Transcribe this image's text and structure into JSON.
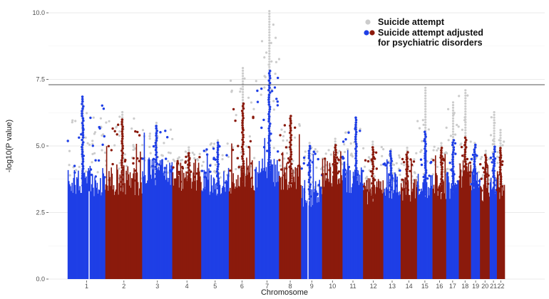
{
  "chart_data": {
    "type": "scatter",
    "subtype": "manhattan",
    "title": "",
    "xlabel": "Chromosome",
    "ylabel": "-log10(P value)",
    "ylim": [
      0,
      10.2
    ],
    "yticks": [
      0.0,
      2.5,
      5.0,
      7.5,
      10.0
    ],
    "ytick_labels": [
      "0.0",
      "2.5",
      "5.0",
      "7.5",
      "10.0"
    ],
    "significance_line": 7.3,
    "grid": "horizontal",
    "legend_position": "top-right",
    "colors": {
      "background_series": "#cccccc",
      "blue": "#1f3fe6",
      "red": "#8b1a0c",
      "threshold": "#555555",
      "grid": "#e3e3e3"
    },
    "legend": [
      {
        "label": "Suicide attempt",
        "marker": "grey"
      },
      {
        "label_line1": "Suicide attempt adjusted",
        "label_line2": "for psychiatric disorders",
        "marker": "blue-red"
      }
    ],
    "series": [
      {
        "name": "Suicide attempt",
        "color": "#cccccc"
      },
      {
        "name": "Suicide attempt adjusted for psychiatric disorders",
        "color_alternating": [
          "#1f3fe6",
          "#8b1a0c"
        ]
      }
    ],
    "chromosomes": [
      {
        "label": "1",
        "size": 248,
        "max_unadjusted": 6.6,
        "max_adjusted": 6.9
      },
      {
        "label": "2",
        "size": 242,
        "max_unadjusted": 6.3,
        "max_adjusted": 6.0
      },
      {
        "label": "3",
        "size": 198,
        "max_unadjusted": 5.9,
        "max_adjusted": 5.8
      },
      {
        "label": "4",
        "size": 190,
        "max_unadjusted": 5.0,
        "max_adjusted": 4.8
      },
      {
        "label": "5",
        "size": 181,
        "max_unadjusted": 5.3,
        "max_adjusted": 5.2
      },
      {
        "label": "6",
        "size": 171,
        "max_unadjusted": 8.0,
        "max_adjusted": 6.6
      },
      {
        "label": "7",
        "size": 159,
        "max_unadjusted": 10.1,
        "max_adjusted": 7.9
      },
      {
        "label": "8",
        "size": 145,
        "max_unadjusted": 6.1,
        "max_adjusted": 6.2
      },
      {
        "label": "9",
        "size": 138,
        "max_unadjusted": 5.2,
        "max_adjusted": 5.0
      },
      {
        "label": "10",
        "size": 134,
        "max_unadjusted": 5.3,
        "max_adjusted": 5.1
      },
      {
        "label": "11",
        "size": 135,
        "max_unadjusted": 5.9,
        "max_adjusted": 6.1
      },
      {
        "label": "12",
        "size": 133,
        "max_unadjusted": 5.2,
        "max_adjusted": 5.0
      },
      {
        "label": "13",
        "size": 114,
        "max_unadjusted": 4.9,
        "max_adjusted": 4.8
      },
      {
        "label": "14",
        "size": 107,
        "max_unadjusted": 5.0,
        "max_adjusted": 4.8
      },
      {
        "label": "15",
        "size": 102,
        "max_unadjusted": 7.2,
        "max_adjusted": 5.6
      },
      {
        "label": "16",
        "size": 90,
        "max_unadjusted": 5.2,
        "max_adjusted": 5.0
      },
      {
        "label": "17",
        "size": 83,
        "max_unadjusted": 6.7,
        "max_adjusted": 5.3
      },
      {
        "label": "18",
        "size": 80,
        "max_unadjusted": 7.1,
        "max_adjusted": 5.4
      },
      {
        "label": "19",
        "size": 59,
        "max_unadjusted": 5.2,
        "max_adjusted": 5.1
      },
      {
        "label": "20",
        "size": 64,
        "max_unadjusted": 4.9,
        "max_adjusted": 4.7
      },
      {
        "label": "21",
        "size": 47,
        "max_unadjusted": 6.3,
        "max_adjusted": 5.0
      },
      {
        "label": "22",
        "size": 51,
        "max_unadjusted": 5.6,
        "max_adjusted": 5.0
      }
    ]
  }
}
